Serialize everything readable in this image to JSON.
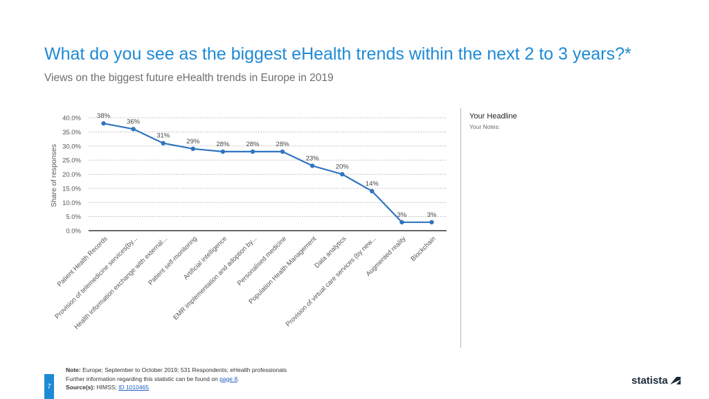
{
  "header": {
    "title": "What do you see as the biggest eHealth trends within the next 2 to 3 years?*",
    "subtitle": "Views on the biggest future eHealth trends in Europe in 2019"
  },
  "sidebar": {
    "headline": "Your Headline",
    "notes": "Your Notes:"
  },
  "footer": {
    "page_number": "7",
    "note_label": "Note:",
    "note_text": "Europe; September to October 2019; 531 Respondents; eHealth professionals",
    "further_info_text": "Further information regarding this statistic can be found on",
    "further_info_link": "page 8",
    "further_info_end": ".",
    "source_label": "Source(s):",
    "source_text": "HIMSS;",
    "source_link": "ID 1010465"
  },
  "logo": {
    "text": "statista"
  },
  "colors": {
    "accent": "#1e8ad6",
    "line": "#2f74c0",
    "grid": "#9a9a9a",
    "axis": "#333333"
  },
  "chart_data": {
    "type": "line",
    "title": "Views on the biggest future eHealth trends in Europe in 2019",
    "xlabel": "",
    "ylabel": "Share of responses",
    "ylim": [
      0,
      40
    ],
    "ytick_values": [
      0,
      5,
      10,
      15,
      20,
      25,
      30,
      35,
      40
    ],
    "ytick_labels": [
      "0.0%",
      "5.0%",
      "10.0%",
      "15.0%",
      "20.0%",
      "25.0%",
      "30.0%",
      "35.0%",
      "40.0%"
    ],
    "grid": true,
    "categories": [
      "Patient Health Records",
      "Provision of telemedicine services(by...",
      "Health information exchange with external...",
      "Patient self-monitoring",
      "Artificial intelligence",
      "EMR implementation and adoption by...",
      "Personalised medicine",
      "Population Health Management",
      "Data analytics",
      "Provision of virtual care services (by new...",
      "Augmented reality",
      "Blockchain"
    ],
    "values": [
      38,
      36,
      31,
      29,
      28,
      28,
      28,
      23,
      20,
      14,
      3,
      3
    ],
    "data_labels": [
      "38%",
      "36%",
      "31%",
      "29%",
      "28%",
      "28%",
      "28%",
      "23%",
      "20%",
      "14%",
      "3%",
      "3%"
    ]
  }
}
